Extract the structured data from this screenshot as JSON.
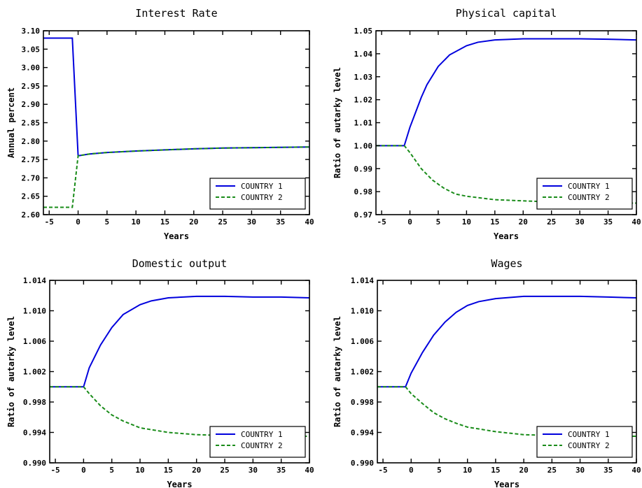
{
  "chart_data": [
    {
      "type": "line",
      "title": "Interest Rate",
      "xlabel": "Years",
      "ylabel": "Annual percent",
      "xlim": [
        -6,
        40
      ],
      "ylim": [
        2.6,
        3.1
      ],
      "xticks": [
        -5,
        0,
        5,
        10,
        15,
        20,
        25,
        30,
        35,
        40
      ],
      "yticks": [
        "2.60",
        "2.65",
        "2.70",
        "2.75",
        "2.80",
        "2.85",
        "2.90",
        "2.95",
        "3.00",
        "3.05",
        "3.10"
      ],
      "legend_position": "bottom-right",
      "colors": {
        "series_1": "#0000dd",
        "series_2": "#1a8c1a"
      },
      "series": [
        {
          "name": "COUNTRY 1",
          "style": "solid",
          "x": [
            -6,
            -1,
            0,
            2,
            5,
            10,
            15,
            20,
            25,
            30,
            35,
            40
          ],
          "y": [
            3.08,
            3.08,
            2.76,
            2.765,
            2.769,
            2.773,
            2.776,
            2.779,
            2.781,
            2.782,
            2.783,
            2.784
          ]
        },
        {
          "name": "COUNTRY 2",
          "style": "dashed",
          "x": [
            -6,
            -1,
            0,
            2,
            5,
            10,
            15,
            20,
            25,
            30,
            35,
            40
          ],
          "y": [
            2.62,
            2.62,
            2.76,
            2.765,
            2.769,
            2.773,
            2.776,
            2.779,
            2.781,
            2.782,
            2.783,
            2.784
          ]
        }
      ]
    },
    {
      "type": "line",
      "title": "Physical capital",
      "xlabel": "Years",
      "ylabel": "Ratio of autarky level",
      "xlim": [
        -6,
        40
      ],
      "ylim": [
        0.97,
        1.05
      ],
      "xticks": [
        -5,
        0,
        5,
        10,
        15,
        20,
        25,
        30,
        35,
        40
      ],
      "yticks": [
        "0.97",
        "0.98",
        "0.99",
        "1.00",
        "1.01",
        "1.02",
        "1.03",
        "1.04",
        "1.05"
      ],
      "legend_position": "bottom-right",
      "colors": {
        "series_1": "#0000dd",
        "series_2": "#1a8c1a"
      },
      "series": [
        {
          "name": "COUNTRY 1",
          "style": "solid",
          "x": [
            -6,
            -1,
            0,
            1,
            2,
            3,
            5,
            7,
            10,
            12,
            15,
            20,
            25,
            30,
            35,
            40
          ],
          "y": [
            1.0,
            1.0,
            1.008,
            1.0145,
            1.021,
            1.0265,
            1.0345,
            1.0395,
            1.0435,
            1.045,
            1.046,
            1.0465,
            1.0465,
            1.0465,
            1.0463,
            1.046
          ]
        },
        {
          "name": "COUNTRY 2",
          "style": "dashed",
          "x": [
            -6,
            -1,
            0,
            2,
            4,
            6,
            8,
            10,
            15,
            20,
            25,
            30,
            35,
            40
          ],
          "y": [
            1.0,
            1.0,
            0.997,
            0.99,
            0.985,
            0.9815,
            0.979,
            0.978,
            0.9765,
            0.976,
            0.9755,
            0.9752,
            0.975,
            0.975
          ]
        }
      ]
    },
    {
      "type": "line",
      "title": "Domestic output",
      "xlabel": "Years",
      "ylabel": "Ratio of autarky level",
      "xlim": [
        -6,
        40
      ],
      "ylim": [
        0.99,
        1.014
      ],
      "xticks": [
        -5,
        0,
        5,
        10,
        15,
        20,
        25,
        30,
        35,
        40
      ],
      "yticks": [
        "0.990",
        "0.994",
        "0.998",
        "1.002",
        "1.006",
        "1.010",
        "1.014"
      ],
      "legend_position": "bottom-right",
      "colors": {
        "series_1": "#0000dd",
        "series_2": "#1a8c1a"
      },
      "series": [
        {
          "name": "COUNTRY 1",
          "style": "solid",
          "x": [
            -6,
            0,
            1,
            3,
            5,
            7,
            10,
            12,
            15,
            20,
            25,
            30,
            35,
            40
          ],
          "y": [
            1.0,
            1.0,
            1.0025,
            1.0055,
            1.0078,
            1.0095,
            1.0108,
            1.0113,
            1.0117,
            1.0119,
            1.0119,
            1.0118,
            1.0118,
            1.0117
          ]
        },
        {
          "name": "COUNTRY 2",
          "style": "dashed",
          "x": [
            -6,
            0,
            1,
            3,
            5,
            7,
            10,
            15,
            20,
            25,
            30,
            35,
            40
          ],
          "y": [
            1.0,
            1.0,
            0.9991,
            0.9975,
            0.9963,
            0.9955,
            0.9946,
            0.994,
            0.9937,
            0.9936,
            0.9935,
            0.9935,
            0.9935
          ]
        }
      ]
    },
    {
      "type": "line",
      "title": "Wages",
      "xlabel": "Years",
      "ylabel": "Ratio of autarky level",
      "xlim": [
        -6,
        40
      ],
      "ylim": [
        0.99,
        1.014
      ],
      "xticks": [
        -5,
        0,
        5,
        10,
        15,
        20,
        25,
        30,
        35,
        40
      ],
      "yticks": [
        "0.990",
        "0.994",
        "0.998",
        "1.002",
        "1.006",
        "1.010",
        "1.014"
      ],
      "legend_position": "bottom-right",
      "colors": {
        "series_1": "#0000dd",
        "series_2": "#1a8c1a"
      },
      "series": [
        {
          "name": "COUNTRY 1",
          "style": "solid",
          "x": [
            -6,
            -1,
            0,
            2,
            4,
            6,
            8,
            10,
            12,
            15,
            20,
            25,
            30,
            35,
            40
          ],
          "y": [
            1.0,
            1.0,
            1.0018,
            1.0045,
            1.0068,
            1.0085,
            1.0098,
            1.0107,
            1.0112,
            1.0116,
            1.0119,
            1.0119,
            1.0119,
            1.0118,
            1.0117
          ]
        },
        {
          "name": "COUNTRY 2",
          "style": "dashed",
          "x": [
            -6,
            -1,
            0,
            2,
            4,
            6,
            8,
            10,
            15,
            20,
            25,
            30,
            35,
            40
          ],
          "y": [
            1.0,
            1.0,
            0.9991,
            0.9978,
            0.9966,
            0.9958,
            0.9952,
            0.9947,
            0.9941,
            0.9937,
            0.9936,
            0.9935,
            0.9935,
            0.9935
          ]
        }
      ]
    }
  ]
}
